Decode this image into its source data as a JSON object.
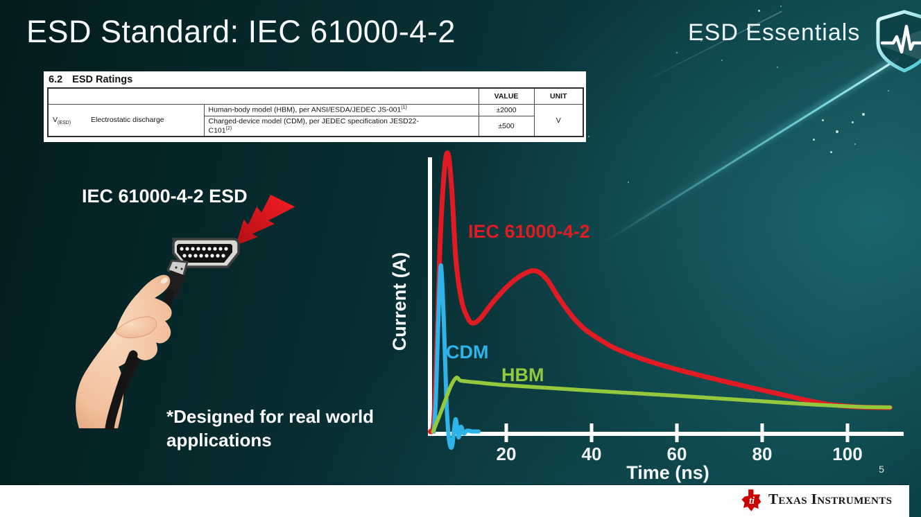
{
  "slide": {
    "title": "ESD Standard: IEC 61000-4-2",
    "program_badge": {
      "label": "ESD Essentials"
    },
    "page_number": "5",
    "footer_brand": "Texas Instruments"
  },
  "colors": {
    "background_teal": "#0c4347",
    "series_red": "#e11b23",
    "series_cyan": "#2fb4e9",
    "series_green": "#94c83d",
    "footer_bg": "#ffffff",
    "ti_red": "#cc0000"
  },
  "ratings_table": {
    "section": "6.2",
    "section_title": "ESD Ratings",
    "col_headers": [
      "VALUE",
      "UNIT"
    ],
    "row_group": {
      "symbol_base": "V",
      "symbol_sub": "(ESD)",
      "parameter": "Electrostatic discharge",
      "rows": [
        {
          "description": "Human-body model (HBM), per ANSI/ESDA/JEDEC JS-001",
          "sup": "(1)",
          "value": "±2000"
        },
        {
          "description": "Charged-device model (CDM), per JEDEC specification JESD22-\nC101",
          "sup": "(2)",
          "value": "±500"
        }
      ],
      "unit": "V"
    }
  },
  "illustration": {
    "label": "IEC 61000-4-2 ESD",
    "caption": "*Designed for real world\napplications",
    "icons": [
      "lightning-bolt-icon",
      "hdmi-connector",
      "hand-holding-cable"
    ]
  },
  "chart_data": {
    "type": "line",
    "title": "",
    "xlabel": "Time (ns)",
    "ylabel": "Current (A)",
    "xlim": [
      0,
      112
    ],
    "x_ticks": [
      20,
      40,
      60,
      80,
      100
    ],
    "ylim": [
      -0.08,
      1.05
    ],
    "y_note": "amplitude normalized to IEC 61000-4-2 first peak = 1.0",
    "grid": false,
    "legend_position": "labels-on-curves",
    "series": [
      {
        "name": "IEC 61000-4-2",
        "color": "#e11b23",
        "points": [
          [
            2.2,
            0
          ],
          [
            3,
            0.04
          ],
          [
            3.8,
            0.35
          ],
          [
            4.6,
            0.72
          ],
          [
            5.6,
            0.96
          ],
          [
            6.4,
            1.0
          ],
          [
            7.2,
            0.88
          ],
          [
            8.2,
            0.62
          ],
          [
            9.5,
            0.475
          ],
          [
            11,
            0.41
          ],
          [
            12.2,
            0.392
          ],
          [
            14,
            0.41
          ],
          [
            17,
            0.47
          ],
          [
            21,
            0.535
          ],
          [
            24.5,
            0.572
          ],
          [
            27,
            0.58
          ],
          [
            29.5,
            0.55
          ],
          [
            32,
            0.49
          ],
          [
            35,
            0.425
          ],
          [
            38,
            0.375
          ],
          [
            41,
            0.342
          ],
          [
            45,
            0.305
          ],
          [
            50,
            0.273
          ],
          [
            55,
            0.247
          ],
          [
            60,
            0.225
          ],
          [
            65,
            0.205
          ],
          [
            70,
            0.186
          ],
          [
            75,
            0.168
          ],
          [
            80,
            0.15
          ],
          [
            85,
            0.133
          ],
          [
            90,
            0.115
          ],
          [
            95,
            0.1
          ],
          [
            100,
            0.092
          ],
          [
            105,
            0.088
          ],
          [
            110,
            0.087
          ]
        ]
      },
      {
        "name": "CDM",
        "color": "#2fb4e9",
        "points": [
          [
            3,
            0
          ],
          [
            3.5,
            0.12
          ],
          [
            4.1,
            0.42
          ],
          [
            4.7,
            0.6
          ],
          [
            5.4,
            0.38
          ],
          [
            6,
            0.1
          ],
          [
            6.6,
            -0.03
          ],
          [
            7.3,
            -0.052
          ],
          [
            8.1,
            0.045
          ],
          [
            8.8,
            -0.02
          ],
          [
            9.4,
            0.018
          ],
          [
            10,
            -0.006
          ],
          [
            10.8,
            0.004
          ],
          [
            12,
            0.001
          ],
          [
            13.5,
            0.001
          ]
        ]
      },
      {
        "name": "HBM",
        "color": "#94c83d",
        "points": [
          [
            2.8,
            0
          ],
          [
            4,
            0.045
          ],
          [
            5.5,
            0.105
          ],
          [
            7,
            0.165
          ],
          [
            8.3,
            0.195
          ],
          [
            9.2,
            0.185
          ],
          [
            10.5,
            0.182
          ],
          [
            13,
            0.178
          ],
          [
            20,
            0.168
          ],
          [
            30,
            0.158
          ],
          [
            40,
            0.148
          ],
          [
            50,
            0.139
          ],
          [
            60,
            0.13
          ],
          [
            70,
            0.12
          ],
          [
            80,
            0.11
          ],
          [
            90,
            0.1
          ],
          [
            100,
            0.092
          ],
          [
            105,
            0.089
          ],
          [
            110,
            0.088
          ]
        ]
      }
    ]
  }
}
